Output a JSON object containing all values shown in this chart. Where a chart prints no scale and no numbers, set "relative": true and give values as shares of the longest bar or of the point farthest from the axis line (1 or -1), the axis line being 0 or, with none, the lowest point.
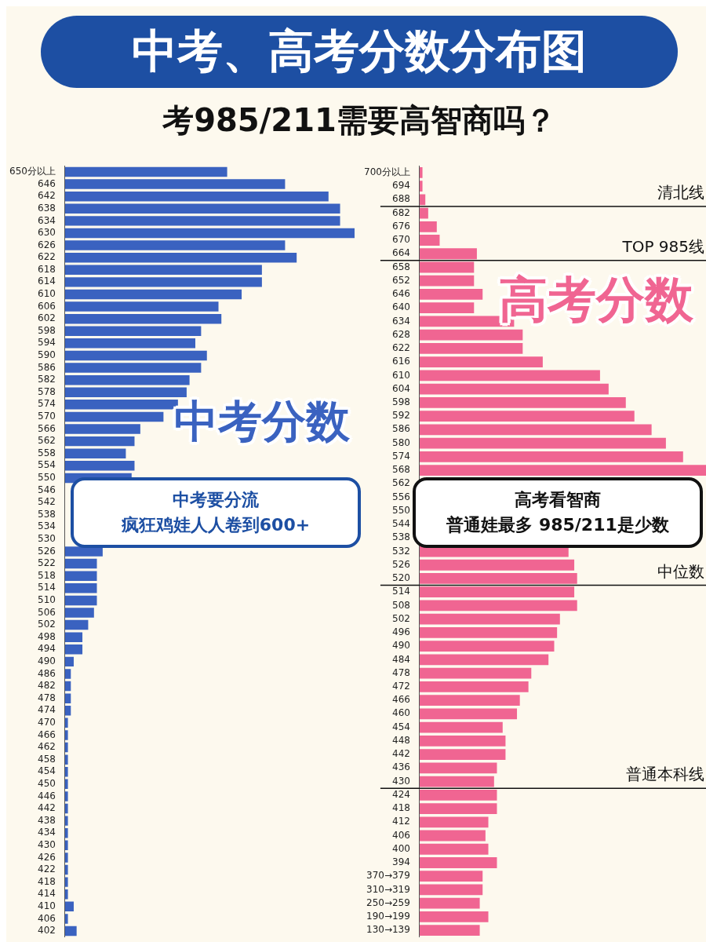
{
  "chart_data": [
    {
      "type": "bar",
      "orientation": "horizontal",
      "relative": true,
      "title": "中考、高考分数分布图",
      "subtitle": "考985/211需要高智商吗？",
      "color": "#3a62c0",
      "categories": [
        "650分以上",
        "646",
        "642",
        "638",
        "634",
        "630",
        "626",
        "622",
        "618",
        "614",
        "610",
        "606",
        "602",
        "598",
        "594",
        "590",
        "586",
        "582",
        "578",
        "574",
        "570",
        "566",
        "562",
        "558",
        "554",
        "550",
        "546",
        "542",
        "538",
        "534",
        "530",
        "526",
        "522",
        "518",
        "514",
        "510",
        "506",
        "502",
        "498",
        "494",
        "490",
        "486",
        "482",
        "478",
        "474",
        "470",
        "466",
        "462",
        "458",
        "454",
        "450",
        "446",
        "442",
        "438",
        "434",
        "430",
        "426",
        "422",
        "418",
        "414",
        "410",
        "406",
        "402"
      ],
      "values": [
        0.56,
        0.76,
        0.91,
        0.95,
        0.95,
        1,
        0.76,
        0.8,
        0.68,
        0.68,
        0.61,
        0.53,
        0.54,
        0.47,
        0.45,
        0.49,
        0.47,
        0.43,
        0.42,
        0.39,
        0.34,
        0.26,
        0.24,
        0.21,
        0.24,
        0.23,
        null,
        null,
        null,
        null,
        null,
        0.13,
        0.11,
        0.11,
        0.11,
        0.11,
        0.1,
        0.08,
        0.06,
        0.06,
        0.03,
        0.02,
        0.02,
        0.02,
        0.02,
        0.01,
        0.01,
        0.01,
        0.01,
        0.01,
        0.01,
        0.01,
        0.01,
        0.01,
        0.01,
        0.01,
        0.01,
        0.01,
        0.01,
        0.01,
        0.03,
        0.01,
        0.04
      ],
      "annotations": [
        "中考分数",
        "中考要分流",
        "疯狂鸡娃人人卷到600+"
      ]
    },
    {
      "type": "bar",
      "orientation": "horizontal",
      "relative": true,
      "color": "#f06592",
      "categories": [
        "700分以上",
        "694",
        "688",
        "682",
        "676",
        "670",
        "664",
        "658",
        "652",
        "646",
        "640",
        "634",
        "628",
        "622",
        "616",
        "610",
        "604",
        "598",
        "592",
        "586",
        "580",
        "574",
        "568",
        "562",
        "556",
        "550",
        "544",
        "538",
        "532",
        "526",
        "520",
        "514",
        "508",
        "502",
        "496",
        "490",
        "484",
        "478",
        "472",
        "466",
        "460",
        "454",
        "448",
        "442",
        "436",
        "430",
        "424",
        "418",
        "412",
        "406",
        "400",
        "394",
        "370→379",
        "310→319",
        "250→259",
        "190→199",
        "130→139"
      ],
      "values": [
        0.01,
        0.01,
        0.02,
        0.03,
        0.06,
        0.07,
        0.2,
        0.19,
        0.19,
        0.22,
        0.19,
        0.33,
        0.36,
        0.36,
        0.43,
        0.63,
        0.66,
        0.72,
        0.75,
        0.81,
        0.86,
        0.92,
        1,
        null,
        null,
        null,
        null,
        null,
        0.52,
        0.54,
        0.55,
        0.54,
        0.55,
        0.49,
        0.48,
        0.47,
        0.45,
        0.39,
        0.38,
        0.35,
        0.34,
        0.29,
        0.3,
        0.3,
        0.27,
        0.26,
        0.27,
        0.27,
        0.24,
        0.23,
        0.24,
        0.27,
        0.22,
        0.22,
        0.21,
        0.24,
        0.21
      ],
      "ref_lines": [
        {
          "axis": "y",
          "value": "688",
          "label": "清北线"
        },
        {
          "axis": "y",
          "value": "664",
          "label": "TOP 985线"
        },
        {
          "axis": "y",
          "value": "520",
          "label": "中位数"
        },
        {
          "axis": "y",
          "value": "430",
          "label": "普通本科线"
        }
      ],
      "annotations": [
        "高考分数",
        "高考看智商",
        "普通娃最多 985/211是少数"
      ]
    }
  ]
}
